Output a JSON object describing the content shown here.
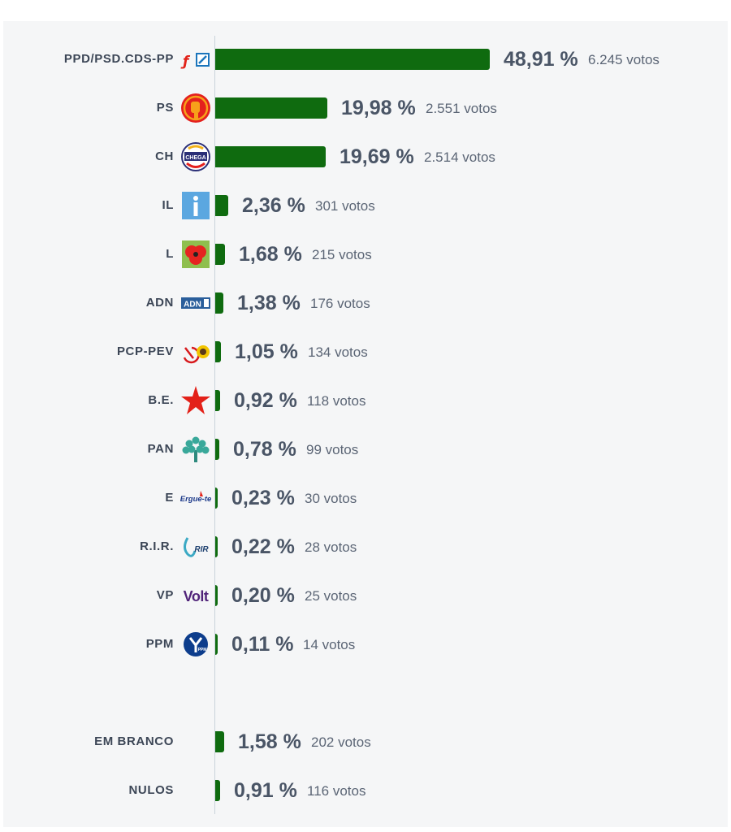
{
  "chart_data": {
    "type": "bar",
    "orientation": "horizontal",
    "bar_color": "#0f6b0f",
    "pct_suffix": " %",
    "votes_suffix": " votos",
    "xlim": [
      0,
      48.91
    ],
    "rows": [
      {
        "label": "PPD/PSD.CDS-PP",
        "logo": "ad-alliance-logo",
        "value": 48.91,
        "pct_text": "48,91",
        "votes_text": "6.245"
      },
      {
        "label": "PS",
        "logo": "ps-fist-rose-logo",
        "value": 19.98,
        "pct_text": "19,98",
        "votes_text": "2.551"
      },
      {
        "label": "CH",
        "logo": "chega-logo",
        "value": 19.69,
        "pct_text": "19,69",
        "votes_text": "2.514"
      },
      {
        "label": "IL",
        "logo": "il-logo",
        "value": 2.36,
        "pct_text": "2,36",
        "votes_text": "301"
      },
      {
        "label": "L",
        "logo": "livre-poppy-logo",
        "value": 1.68,
        "pct_text": "1,68",
        "votes_text": "215"
      },
      {
        "label": "ADN",
        "logo": "adn-logo",
        "logo_text": "ADN",
        "value": 1.38,
        "pct_text": "1,38",
        "votes_text": "176"
      },
      {
        "label": "PCP-PEV",
        "logo": "cdu-hammer-sickle-sunflower-logo",
        "value": 1.05,
        "pct_text": "1,05",
        "votes_text": "134"
      },
      {
        "label": "B.E.",
        "logo": "be-star-logo",
        "value": 0.92,
        "pct_text": "0,92",
        "votes_text": "118"
      },
      {
        "label": "PAN",
        "logo": "pan-tree-logo",
        "value": 0.78,
        "pct_text": "0,78",
        "votes_text": "99"
      },
      {
        "label": "E",
        "logo": "ergue-te-logo",
        "logo_text": "Ergue-te",
        "value": 0.23,
        "pct_text": "0,23",
        "votes_text": "30"
      },
      {
        "label": "R.I.R.",
        "logo": "rir-logo",
        "logo_text": "RIR",
        "value": 0.22,
        "pct_text": "0,22",
        "votes_text": "28"
      },
      {
        "label": "VP",
        "logo": "volt-logo",
        "logo_text": "Volt",
        "value": 0.2,
        "pct_text": "0,20",
        "votes_text": "25"
      },
      {
        "label": "PPM",
        "logo": "ppm-logo",
        "logo_text": "PPM",
        "value": 0.11,
        "pct_text": "0,11",
        "votes_text": "14"
      },
      {
        "label": "EM BRANCO",
        "logo": "",
        "value": 1.58,
        "pct_text": "1,58",
        "votes_text": "202"
      },
      {
        "label": "NULOS",
        "logo": "",
        "value": 0.91,
        "pct_text": "0,91",
        "votes_text": "116"
      }
    ]
  }
}
